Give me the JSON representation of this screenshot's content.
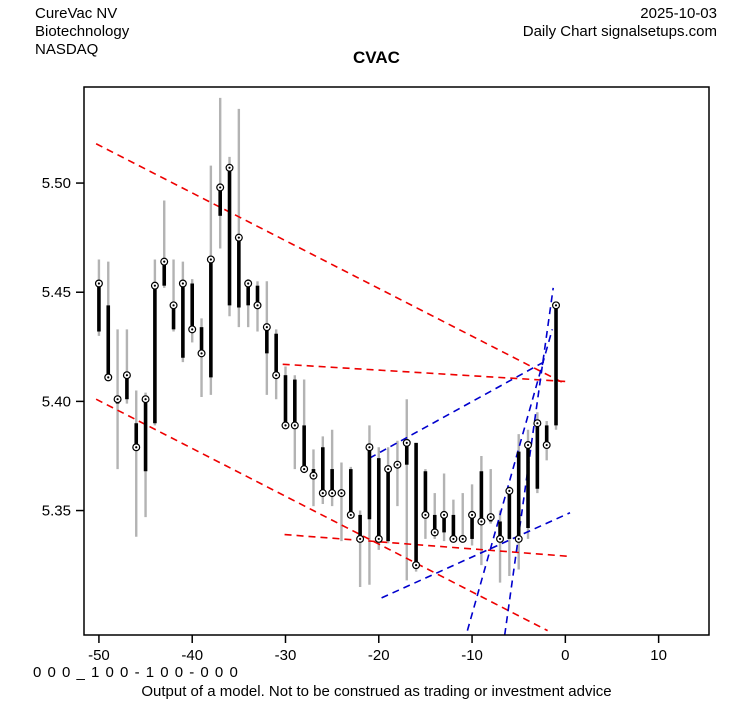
{
  "header": {
    "company": "CureVac NV",
    "sector": "Biotechnology",
    "exchange": "NASDAQ",
    "date": "2025-10-03",
    "chart_kind": "Daily Chart signalsetups.com"
  },
  "title": "CVAC",
  "footer": {
    "signal_code": "0 0 0 _ 1 0 0 - 1 0 0 - 0 0 0",
    "disclaimer": "Output of a model. Not to be construed as trading or investment advice"
  },
  "chart_data": {
    "type": "bar",
    "subtype": "daily-ohlc-bars-with-close-markers",
    "title": "CVAC",
    "xlabel": "",
    "ylabel": "",
    "xlim": [
      -51.6,
      15.4
    ],
    "ylim": [
      5.293,
      5.544
    ],
    "x_ticks": [
      -50,
      -40,
      -30,
      -20,
      -10,
      0,
      10
    ],
    "y_ticks": [
      "5.35",
      "5.40",
      "5.45",
      "5.50"
    ],
    "grid": "off",
    "colors": {
      "wick": "#b3b3b3",
      "body": "#000000",
      "marker": "#000000",
      "red_trendline": "#ee0000",
      "blue_trendline": "#0000cd",
      "axis": "#000000"
    },
    "bars_x": [
      -50,
      -49,
      -48,
      -47,
      -46,
      -45,
      -44,
      -43,
      -42,
      -41,
      -40,
      -39,
      -38,
      -37,
      -36,
      -35,
      -34,
      -33,
      -32,
      -31,
      -30,
      -29,
      -28,
      -27,
      -26,
      -25,
      -24,
      -23,
      -22,
      -21,
      -20,
      -19,
      -18,
      -17,
      -16,
      -15,
      -14,
      -13,
      -12,
      -11,
      -10,
      -9,
      -8,
      -7,
      -6,
      -5,
      -4,
      -3,
      -2,
      -1
    ],
    "ohlc": [
      [
        5.432,
        5.465,
        5.43,
        5.454
      ],
      [
        5.444,
        5.464,
        5.41,
        5.411
      ],
      [
        5.399,
        5.433,
        5.369,
        5.401
      ],
      [
        5.401,
        5.433,
        5.399,
        5.412
      ],
      [
        5.39,
        5.405,
        5.338,
        5.379
      ],
      [
        5.368,
        5.404,
        5.347,
        5.401
      ],
      [
        5.39,
        5.465,
        5.389,
        5.453
      ],
      [
        5.453,
        5.492,
        5.452,
        5.464
      ],
      [
        5.433,
        5.465,
        5.432,
        5.444
      ],
      [
        5.42,
        5.464,
        5.418,
        5.454
      ],
      [
        5.454,
        5.456,
        5.427,
        5.433
      ],
      [
        5.434,
        5.438,
        5.402,
        5.422
      ],
      [
        5.411,
        5.508,
        5.403,
        5.465
      ],
      [
        5.485,
        5.539,
        5.47,
        5.498
      ],
      [
        5.444,
        5.512,
        5.439,
        5.507
      ],
      [
        5.443,
        5.534,
        5.434,
        5.475
      ],
      [
        5.444,
        5.456,
        5.434,
        5.454
      ],
      [
        5.453,
        5.455,
        5.432,
        5.444
      ],
      [
        5.422,
        5.455,
        5.403,
        5.434
      ],
      [
        5.431,
        5.433,
        5.401,
        5.412
      ],
      [
        5.412,
        5.416,
        5.389,
        5.389
      ],
      [
        5.41,
        5.412,
        5.369,
        5.389
      ],
      [
        5.389,
        5.41,
        5.368,
        5.369
      ],
      [
        5.369,
        5.378,
        5.352,
        5.366
      ],
      [
        5.379,
        5.384,
        5.353,
        5.358
      ],
      [
        5.369,
        5.387,
        5.352,
        5.358
      ],
      [
        5.358,
        5.372,
        5.336,
        5.358
      ],
      [
        5.369,
        5.37,
        5.347,
        5.348
      ],
      [
        5.348,
        5.35,
        5.315,
        5.337
      ],
      [
        5.346,
        5.389,
        5.316,
        5.379
      ],
      [
        5.374,
        5.379,
        5.332,
        5.337
      ],
      [
        5.336,
        5.379,
        5.335,
        5.369
      ],
      [
        5.372,
        5.382,
        5.352,
        5.371
      ],
      [
        5.371,
        5.401,
        5.318,
        5.381
      ],
      [
        5.381,
        5.381,
        5.322,
        5.325
      ],
      [
        5.368,
        5.369,
        5.337,
        5.348
      ],
      [
        5.348,
        5.358,
        5.337,
        5.34
      ],
      [
        5.34,
        5.367,
        5.336,
        5.348
      ],
      [
        5.348,
        5.355,
        5.336,
        5.337
      ],
      [
        5.337,
        5.358,
        5.336,
        5.337
      ],
      [
        5.337,
        5.362,
        5.334,
        5.348
      ],
      [
        5.368,
        5.375,
        5.325,
        5.345
      ],
      [
        5.345,
        5.369,
        5.344,
        5.347
      ],
      [
        5.345,
        5.35,
        5.317,
        5.337
      ],
      [
        5.337,
        5.361,
        5.32,
        5.359
      ],
      [
        5.377,
        5.385,
        5.323,
        5.337
      ],
      [
        5.342,
        5.387,
        5.337,
        5.38
      ],
      [
        5.36,
        5.395,
        5.358,
        5.39
      ],
      [
        5.389,
        5.391,
        5.373,
        5.38
      ],
      [
        5.389,
        5.444,
        5.387,
        5.444
      ]
    ],
    "trendlines": [
      {
        "name": "red-resistance-steep",
        "color": "red",
        "x1": -50.3,
        "y1": 5.518,
        "x2": 0.0,
        "y2": 5.408
      },
      {
        "name": "red-flat-upper",
        "color": "red",
        "x1": -30.3,
        "y1": 5.417,
        "x2": 0.5,
        "y2": 5.409
      },
      {
        "name": "red-support-steep",
        "color": "red",
        "x1": -50.3,
        "y1": 5.401,
        "x2": -1.9,
        "y2": 5.295
      },
      {
        "name": "red-flat-lower",
        "color": "red",
        "x1": -30.1,
        "y1": 5.339,
        "x2": 0.5,
        "y2": 5.329
      },
      {
        "name": "blue-rising-gentle",
        "color": "blue",
        "x1": -21.0,
        "y1": 5.374,
        "x2": -1.9,
        "y2": 5.419
      },
      {
        "name": "blue-rising-low",
        "color": "blue",
        "x1": -19.7,
        "y1": 5.31,
        "x2": 0.5,
        "y2": 5.349
      },
      {
        "name": "blue-rising-steep",
        "color": "blue",
        "x1": -10.5,
        "y1": 5.295,
        "x2": -1.4,
        "y2": 5.433
      },
      {
        "name": "blue-rising-steepest",
        "color": "blue",
        "x1": -6.5,
        "y1": 5.293,
        "x2": -1.3,
        "y2": 5.452
      }
    ],
    "legend": "none"
  }
}
